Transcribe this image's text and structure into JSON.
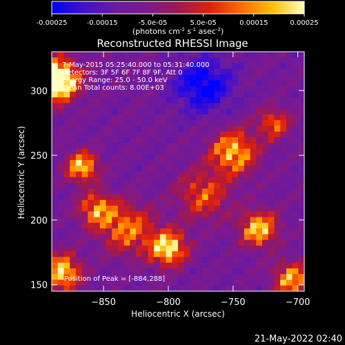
{
  "colorbar": {
    "tick_labels": [
      "-0.00025",
      "-0.00015",
      "-5.0e-05",
      "5.0e-05",
      "0.00015",
      "0.00025"
    ],
    "tick_values": [
      -0.00025,
      -0.00015,
      -5e-05,
      5e-05,
      0.00015,
      0.00025
    ],
    "range": [
      -0.00025,
      0.00025
    ],
    "units_parts": [
      "(photons cm",
      "-2",
      " s",
      "-1",
      " asec",
      "-2",
      ")"
    ],
    "colormap": [
      "#0000ff",
      "#4010d0",
      "#6a1aa0",
      "#7c1a90",
      "#a01850",
      "#e0200a",
      "#ff6a00",
      "#ffc000",
      "#ffffc0"
    ]
  },
  "chart_data": {
    "type": "heatmap",
    "title": "Reconstructed RHESSI Image",
    "xlabel": "Heliocentric X (arcsec)",
    "ylabel": "Heliocentric Y (arcsec)",
    "xlim": [
      -890,
      -695
    ],
    "ylim": [
      145,
      330
    ],
    "x_ticks": [
      -850,
      -800,
      -750,
      -700
    ],
    "y_ticks": [
      150,
      200,
      250,
      300
    ],
    "x_tick_labels": [
      "−850",
      "−800",
      "−750",
      "−700"
    ],
    "y_tick_labels": [
      "150",
      "200",
      "250",
      "300"
    ],
    "annotations": [
      "7-May-2015 05:25:40.000 to 05:31:40.000",
      "Detectors: 3F 5F 6F 7F 8F 9F, Att 0",
      "Energy Range: 25.0 - 50.0 keV",
      "Clean    Total counts: 8.00E+03"
    ],
    "peak_label": "Position of Peak = [-884,288]",
    "peak_position": [
      -884,
      288
    ],
    "grid": false
  },
  "timestamp": "21-May-2022 02:40"
}
